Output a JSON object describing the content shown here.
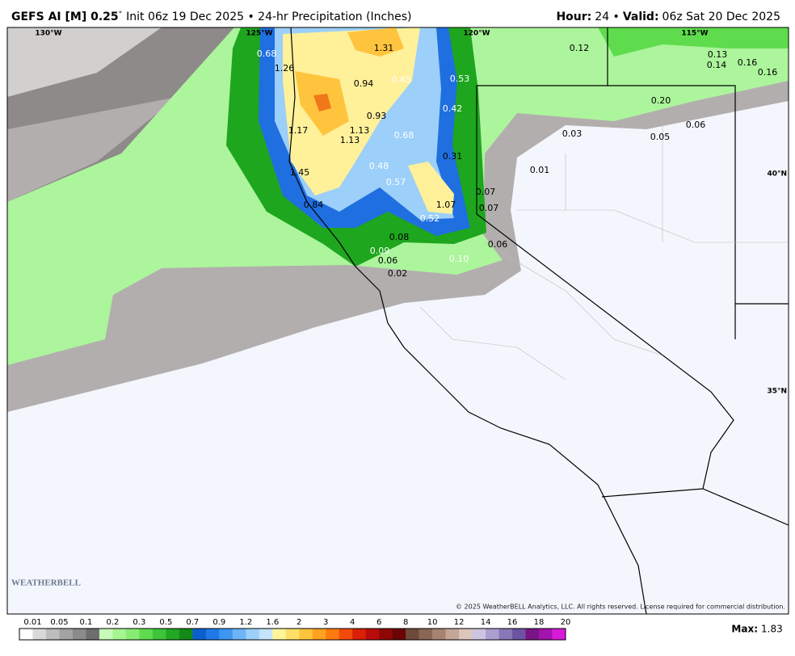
{
  "header": {
    "model": "GEFS AI [M] 0.25",
    "degree": "°",
    "description": "Init 06z 19 Dec 2025 • 24-hr Precipitation (Inches)",
    "hour_label": "Hour:",
    "hour_value": "24 •",
    "valid_label": "Valid:",
    "valid_value": "06z Sat 20 Dec 2025"
  },
  "map": {
    "graticule": [
      "130°W",
      "125°W",
      "120°W",
      "115°W",
      "40°N",
      "35°N"
    ],
    "points": [
      "0.68",
      "1.31",
      "1.26",
      "0.94",
      "0.65",
      "0.53",
      "0.12",
      "0.13",
      "0.14",
      "0.16",
      "0.16",
      "0.42",
      "0.20",
      "0.06",
      "0.93",
      "1.17",
      "1.13",
      "1.13",
      "0.68",
      "0.03",
      "0.05",
      "0.31",
      "0.01",
      "1.45",
      "0.48",
      "0.57",
      "0.07",
      "1.07",
      "0.07",
      "0.84",
      "0.52",
      "0.08",
      "0.06",
      "0.09",
      "0.06",
      "0.10",
      "0.02"
    ],
    "copyright": "© 2025 WeatherBELL Analytics, LLC. All rights reserved. License required for commercial distribution.",
    "logo": "WEATHERBELL"
  },
  "colorbar": {
    "labels": [
      "0.01",
      "0.05",
      "0.1",
      "0.2",
      "0.3",
      "0.5",
      "0.7",
      "0.9",
      "1.2",
      "1.6",
      "2",
      "3",
      "4",
      "6",
      "8",
      "10",
      "12",
      "14",
      "16",
      "18",
      "20"
    ],
    "colors": [
      "#ffffff",
      "#d9d9d9",
      "#bdbdbd",
      "#a3a3a3",
      "#8a8a8a",
      "#6e6e6e",
      "#c6fbb8",
      "#a6f593",
      "#86ec72",
      "#5fdc4e",
      "#3ec43a",
      "#22a822",
      "#138a18",
      "#0d5fcf",
      "#1f7ae8",
      "#3c96f2",
      "#6cb5f7",
      "#9ccff9",
      "#c4e4fb",
      "#fff59a",
      "#ffe066",
      "#ffc43d",
      "#ffa21f",
      "#ff7a0f",
      "#f24a0a",
      "#d92007",
      "#b80c0c",
      "#8f0606",
      "#6b0404",
      "#6e4a3a",
      "#8a6656",
      "#a88272",
      "#c4a698",
      "#dcc6bc",
      "#ccc4e0",
      "#ab9fd0",
      "#8878b8",
      "#6a53a0",
      "#7a1486",
      "#a214ac",
      "#d81ad8"
    ],
    "max_label": "Max:",
    "max_value": "1.83"
  }
}
